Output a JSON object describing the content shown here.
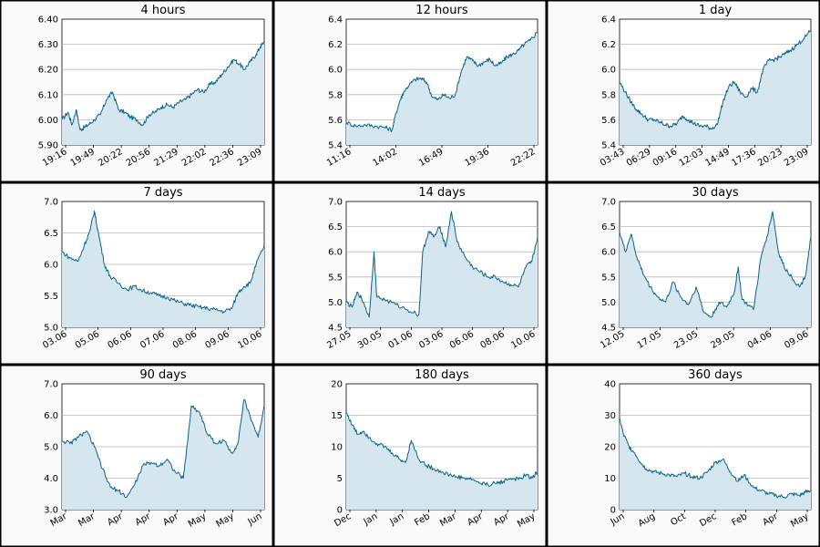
{
  "colors": {
    "line": "#0a6486",
    "fill": "#d6e6ee",
    "grid": "#b8b8b8",
    "panel_background": "#fafafa"
  },
  "chart_data": [
    {
      "type": "area",
      "title": "4 hours",
      "ylim": [
        5.9,
        6.4
      ],
      "yticks": [
        "5.90",
        "6.00",
        "6.10",
        "6.20",
        "6.30",
        "6.40"
      ],
      "xticks": [
        "19:16",
        "19:49",
        "20:22",
        "20:56",
        "21:29",
        "22:02",
        "22:36",
        "23:09"
      ],
      "x": [
        0,
        0.03,
        0.05,
        0.07,
        0.09,
        0.11,
        0.13,
        0.16,
        0.19,
        0.22,
        0.25,
        0.28,
        0.31,
        0.34,
        0.37,
        0.4,
        0.43,
        0.46,
        0.49,
        0.52,
        0.55,
        0.58,
        0.61,
        0.64,
        0.67,
        0.7,
        0.73,
        0.76,
        0.79,
        0.82,
        0.85,
        0.88,
        0.9,
        0.93,
        0.96,
        0.98,
        1.0
      ],
      "values": [
        6.0,
        6.03,
        5.98,
        6.04,
        5.96,
        5.97,
        5.98,
        6.0,
        6.02,
        6.08,
        6.11,
        6.04,
        6.03,
        6.01,
        6.0,
        5.98,
        6.02,
        6.03,
        6.05,
        6.06,
        6.05,
        6.07,
        6.08,
        6.1,
        6.12,
        6.11,
        6.14,
        6.15,
        6.18,
        6.21,
        6.24,
        6.22,
        6.2,
        6.23,
        6.26,
        6.29,
        6.31
      ]
    },
    {
      "type": "area",
      "title": "12 hours",
      "ylim": [
        5.4,
        6.4
      ],
      "yticks": [
        "5.4",
        "5.6",
        "5.8",
        "6.0",
        "6.2",
        "6.4"
      ],
      "xticks": [
        "11:16",
        "14:02",
        "16:49",
        "19:36",
        "22:22"
      ],
      "x": [
        0,
        0.05,
        0.1,
        0.15,
        0.2,
        0.24,
        0.26,
        0.28,
        0.3,
        0.33,
        0.36,
        0.39,
        0.42,
        0.45,
        0.48,
        0.51,
        0.54,
        0.57,
        0.6,
        0.63,
        0.66,
        0.69,
        0.72,
        0.75,
        0.78,
        0.81,
        0.84,
        0.87,
        0.9,
        0.93,
        0.96,
        1.0
      ],
      "values": [
        5.58,
        5.55,
        5.56,
        5.55,
        5.54,
        5.52,
        5.65,
        5.75,
        5.82,
        5.88,
        5.92,
        5.93,
        5.9,
        5.78,
        5.76,
        5.8,
        5.77,
        5.8,
        5.98,
        6.1,
        6.07,
        6.03,
        6.06,
        6.08,
        6.03,
        6.05,
        6.1,
        6.12,
        6.15,
        6.2,
        6.23,
        6.3
      ]
    },
    {
      "type": "area",
      "title": "1 day",
      "ylim": [
        5.4,
        6.4
      ],
      "yticks": [
        "5.4",
        "5.6",
        "5.8",
        "6.0",
        "6.2",
        "6.4"
      ],
      "xticks": [
        "03:43",
        "06:29",
        "09:16",
        "12:03",
        "14:49",
        "17:36",
        "20:23",
        "23:09"
      ],
      "x": [
        0,
        0.03,
        0.06,
        0.09,
        0.12,
        0.15,
        0.18,
        0.21,
        0.24,
        0.27,
        0.3,
        0.33,
        0.36,
        0.39,
        0.42,
        0.45,
        0.48,
        0.51,
        0.54,
        0.57,
        0.6,
        0.63,
        0.66,
        0.69,
        0.72,
        0.75,
        0.78,
        0.81,
        0.84,
        0.87,
        0.9,
        0.93,
        0.96,
        1.0
      ],
      "values": [
        5.9,
        5.82,
        5.74,
        5.68,
        5.64,
        5.6,
        5.6,
        5.58,
        5.56,
        5.55,
        5.57,
        5.63,
        5.6,
        5.57,
        5.55,
        5.55,
        5.53,
        5.56,
        5.74,
        5.86,
        5.9,
        5.82,
        5.78,
        5.85,
        5.82,
        6.0,
        6.07,
        6.08,
        6.1,
        6.13,
        6.16,
        6.2,
        6.24,
        6.31
      ]
    },
    {
      "type": "area",
      "title": "7 days",
      "ylim": [
        5.0,
        7.0
      ],
      "yticks": [
        "5.0",
        "5.5",
        "6.0",
        "6.5",
        "7.0"
      ],
      "xticks": [
        "03.06",
        "05.06",
        "06.06",
        "07.06",
        "08.06",
        "09.06",
        "10.06"
      ],
      "x": [
        0,
        0.04,
        0.08,
        0.11,
        0.14,
        0.16,
        0.18,
        0.21,
        0.24,
        0.28,
        0.32,
        0.36,
        0.4,
        0.44,
        0.48,
        0.52,
        0.56,
        0.6,
        0.64,
        0.68,
        0.72,
        0.76,
        0.8,
        0.84,
        0.87,
        0.9,
        0.93,
        0.96,
        1.0
      ],
      "values": [
        6.2,
        6.1,
        6.05,
        6.3,
        6.55,
        6.85,
        6.5,
        6.0,
        5.8,
        5.7,
        5.6,
        5.65,
        5.58,
        5.55,
        5.5,
        5.48,
        5.42,
        5.38,
        5.35,
        5.32,
        5.3,
        5.28,
        5.25,
        5.3,
        5.55,
        5.65,
        5.7,
        6.0,
        6.3
      ]
    },
    {
      "type": "area",
      "title": "14 days",
      "ylim": [
        4.5,
        7.0
      ],
      "yticks": [
        "4.5",
        "5.0",
        "5.5",
        "6.0",
        "6.5",
        "7.0"
      ],
      "xticks": [
        "27.05",
        "30.05",
        "01.06",
        "03.06",
        "06.06",
        "08.06",
        "10.06"
      ],
      "x": [
        0,
        0.03,
        0.06,
        0.09,
        0.12,
        0.145,
        0.16,
        0.2,
        0.26,
        0.32,
        0.38,
        0.4,
        0.43,
        0.46,
        0.49,
        0.52,
        0.55,
        0.58,
        0.62,
        0.66,
        0.7,
        0.74,
        0.78,
        0.82,
        0.86,
        0.9,
        0.94,
        0.97,
        1.0
      ],
      "values": [
        5.0,
        4.9,
        5.2,
        5.0,
        4.7,
        6.0,
        5.1,
        5.05,
        4.95,
        4.85,
        4.75,
        6.0,
        6.4,
        6.3,
        6.5,
        6.1,
        6.8,
        6.2,
        5.9,
        5.7,
        5.6,
        5.5,
        5.5,
        5.4,
        5.35,
        5.3,
        5.7,
        5.8,
        6.3
      ]
    },
    {
      "type": "area",
      "title": "30 days",
      "ylim": [
        4.5,
        7.0
      ],
      "yticks": [
        "4.5",
        "5.0",
        "5.5",
        "6.0",
        "6.5",
        "7.0"
      ],
      "xticks": [
        "12.05",
        "17.05",
        "23.05",
        "29.05",
        "04.06",
        "09.06"
      ],
      "x": [
        0,
        0.03,
        0.06,
        0.09,
        0.12,
        0.16,
        0.2,
        0.24,
        0.28,
        0.32,
        0.36,
        0.4,
        0.44,
        0.48,
        0.52,
        0.56,
        0.6,
        0.62,
        0.64,
        0.7,
        0.74,
        0.77,
        0.8,
        0.83,
        0.86,
        0.9,
        0.94,
        0.97,
        1.0
      ],
      "values": [
        6.4,
        6.0,
        6.35,
        5.9,
        5.6,
        5.3,
        5.1,
        5.0,
        5.4,
        5.1,
        4.95,
        5.3,
        4.8,
        4.7,
        5.0,
        4.9,
        5.2,
        5.7,
        5.05,
        4.85,
        5.9,
        6.3,
        6.8,
        6.0,
        5.7,
        5.5,
        5.3,
        5.5,
        6.3
      ]
    },
    {
      "type": "area",
      "title": "90 days",
      "ylim": [
        3.0,
        7.0
      ],
      "yticks": [
        "3.0",
        "4.0",
        "5.0",
        "6.0",
        "7.0"
      ],
      "xticks": [
        "Mar",
        "Mar",
        "Apr",
        "Apr",
        "Apr",
        "May",
        "May",
        "Jun"
      ],
      "x": [
        0,
        0.04,
        0.08,
        0.12,
        0.16,
        0.2,
        0.24,
        0.28,
        0.32,
        0.36,
        0.4,
        0.44,
        0.48,
        0.52,
        0.56,
        0.6,
        0.62,
        0.64,
        0.68,
        0.72,
        0.76,
        0.8,
        0.84,
        0.87,
        0.9,
        0.94,
        0.97,
        1.0
      ],
      "values": [
        5.2,
        5.1,
        5.3,
        5.5,
        5.0,
        4.3,
        3.7,
        3.6,
        3.4,
        3.8,
        4.4,
        4.5,
        4.4,
        4.6,
        4.2,
        4.0,
        5.1,
        6.3,
        6.1,
        5.4,
        5.1,
        5.2,
        4.8,
        5.1,
        6.5,
        5.8,
        5.3,
        6.3
      ]
    },
    {
      "type": "area",
      "title": "180 days",
      "ylim": [
        0,
        20
      ],
      "yticks": [
        "0",
        "5",
        "10",
        "15",
        "20"
      ],
      "xticks": [
        "Dec",
        "Jan",
        "Jan",
        "Feb",
        "Mar",
        "Apr",
        "Apr",
        "May"
      ],
      "x": [
        0,
        0.03,
        0.06,
        0.09,
        0.12,
        0.16,
        0.2,
        0.24,
        0.28,
        0.31,
        0.34,
        0.38,
        0.42,
        0.46,
        0.5,
        0.54,
        0.58,
        0.62,
        0.66,
        0.7,
        0.74,
        0.78,
        0.82,
        0.86,
        0.9,
        0.94,
        0.97,
        1.0
      ],
      "values": [
        15.5,
        13.5,
        12.0,
        12.5,
        11.5,
        10.5,
        10.0,
        9.0,
        8.0,
        7.5,
        11.0,
        8.0,
        7.0,
        6.5,
        6.0,
        5.5,
        5.2,
        5.0,
        4.8,
        4.2,
        4.0,
        4.2,
        4.5,
        5.0,
        4.8,
        5.5,
        5.0,
        6.0
      ]
    },
    {
      "type": "area",
      "title": "360 days",
      "ylim": [
        0,
        40
      ],
      "yticks": [
        "0",
        "10",
        "20",
        "30",
        "40"
      ],
      "xticks": [
        "Jun",
        "Aug",
        "Oct",
        "Dec",
        "Feb",
        "Apr",
        "May"
      ],
      "x": [
        0,
        0.02,
        0.05,
        0.08,
        0.11,
        0.14,
        0.18,
        0.22,
        0.26,
        0.3,
        0.34,
        0.38,
        0.42,
        0.46,
        0.5,
        0.54,
        0.58,
        0.62,
        0.65,
        0.7,
        0.74,
        0.78,
        0.82,
        0.86,
        0.9,
        0.94,
        0.97,
        1.0
      ],
      "values": [
        29.0,
        24.0,
        20.0,
        18.0,
        15.0,
        13.0,
        12.0,
        11.5,
        11.0,
        10.5,
        11.5,
        10.5,
        10.0,
        12.0,
        15.0,
        16.0,
        12.0,
        9.0,
        11.0,
        7.0,
        6.0,
        5.0,
        4.5,
        4.0,
        5.0,
        4.5,
        5.5,
        6.0
      ]
    }
  ]
}
